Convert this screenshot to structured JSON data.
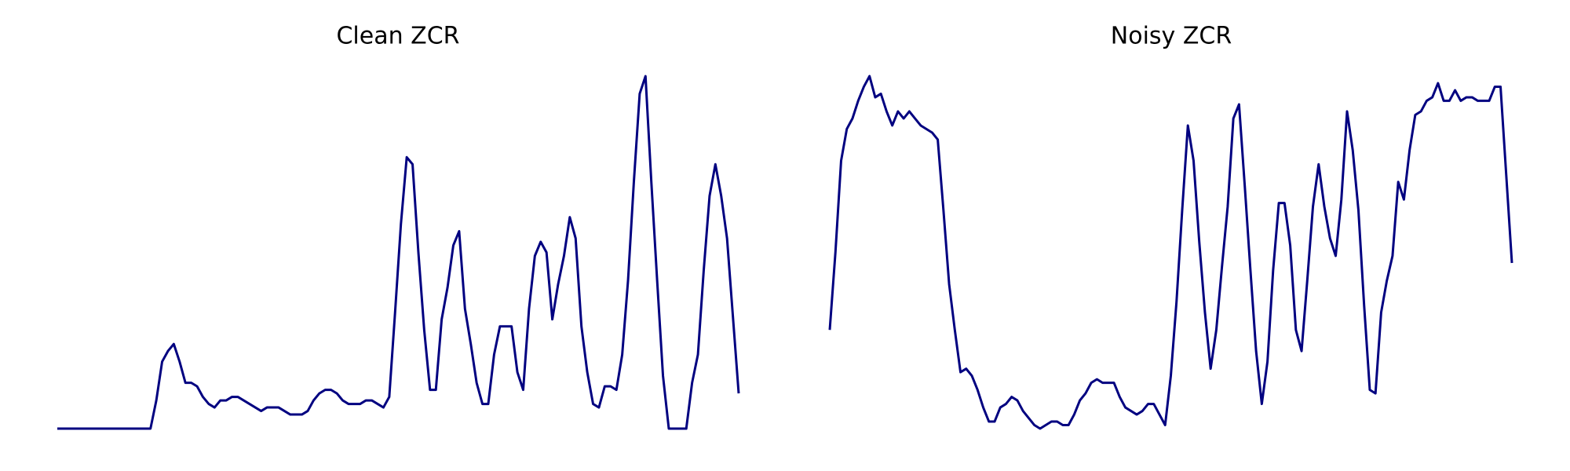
{
  "chart_data": [
    {
      "type": "line",
      "title": "Clean ZCR",
      "color": "#000080",
      "ylim": [
        0,
        1
      ],
      "values": [
        0,
        0,
        0,
        0,
        0,
        0,
        0,
        0,
        0,
        0,
        0,
        0,
        0,
        0,
        0,
        0,
        0,
        0.08,
        0.19,
        0.22,
        0.24,
        0.19,
        0.13,
        0.13,
        0.12,
        0.09,
        0.07,
        0.06,
        0.08,
        0.08,
        0.09,
        0.09,
        0.08,
        0.07,
        0.06,
        0.05,
        0.06,
        0.06,
        0.06,
        0.05,
        0.04,
        0.04,
        0.04,
        0.05,
        0.08,
        0.1,
        0.11,
        0.11,
        0.1,
        0.08,
        0.07,
        0.07,
        0.07,
        0.08,
        0.08,
        0.07,
        0.06,
        0.09,
        0.33,
        0.58,
        0.77,
        0.75,
        0.5,
        0.28,
        0.11,
        0.11,
        0.31,
        0.4,
        0.52,
        0.56,
        0.34,
        0.24,
        0.13,
        0.07,
        0.07,
        0.21,
        0.29,
        0.29,
        0.29,
        0.16,
        0.11,
        0.34,
        0.49,
        0.53,
        0.5,
        0.31,
        0.41,
        0.49,
        0.6,
        0.54,
        0.29,
        0.16,
        0.07,
        0.06,
        0.12,
        0.12,
        0.11,
        0.21,
        0.42,
        0.7,
        0.95,
        1.0,
        0.7,
        0.42,
        0.15,
        0,
        0,
        0,
        0,
        0.13,
        0.21,
        0.45,
        0.66,
        0.75,
        0.66,
        0.54,
        0.32,
        0.1
      ]
    },
    {
      "type": "line",
      "title": "Noisy ZCR",
      "color": "#000080",
      "ylim": [
        0,
        1
      ],
      "values": [
        0.28,
        0.5,
        0.76,
        0.85,
        0.88,
        0.93,
        0.97,
        1.0,
        0.94,
        0.95,
        0.9,
        0.86,
        0.9,
        0.88,
        0.9,
        0.88,
        0.86,
        0.85,
        0.84,
        0.82,
        0.62,
        0.41,
        0.28,
        0.16,
        0.17,
        0.15,
        0.11,
        0.06,
        0.02,
        0.02,
        0.06,
        0.07,
        0.09,
        0.08,
        0.05,
        0.03,
        0.01,
        0,
        0.01,
        0.02,
        0.02,
        0.01,
        0.01,
        0.04,
        0.08,
        0.1,
        0.13,
        0.14,
        0.13,
        0.13,
        0.13,
        0.09,
        0.06,
        0.05,
        0.04,
        0.05,
        0.07,
        0.07,
        0.04,
        0.01,
        0.15,
        0.36,
        0.62,
        0.86,
        0.76,
        0.53,
        0.33,
        0.17,
        0.28,
        0.46,
        0.63,
        0.88,
        0.92,
        0.69,
        0.45,
        0.22,
        0.07,
        0.19,
        0.45,
        0.64,
        0.64,
        0.52,
        0.28,
        0.22,
        0.42,
        0.63,
        0.75,
        0.63,
        0.54,
        0.49,
        0.65,
        0.9,
        0.79,
        0.62,
        0.35,
        0.11,
        0.1,
        0.33,
        0.42,
        0.49,
        0.7,
        0.65,
        0.79,
        0.89,
        0.9,
        0.93,
        0.94,
        0.98,
        0.93,
        0.93,
        0.96,
        0.93,
        0.94,
        0.94,
        0.93,
        0.93,
        0.93,
        0.97,
        0.97,
        0.72,
        0.47
      ]
    }
  ]
}
